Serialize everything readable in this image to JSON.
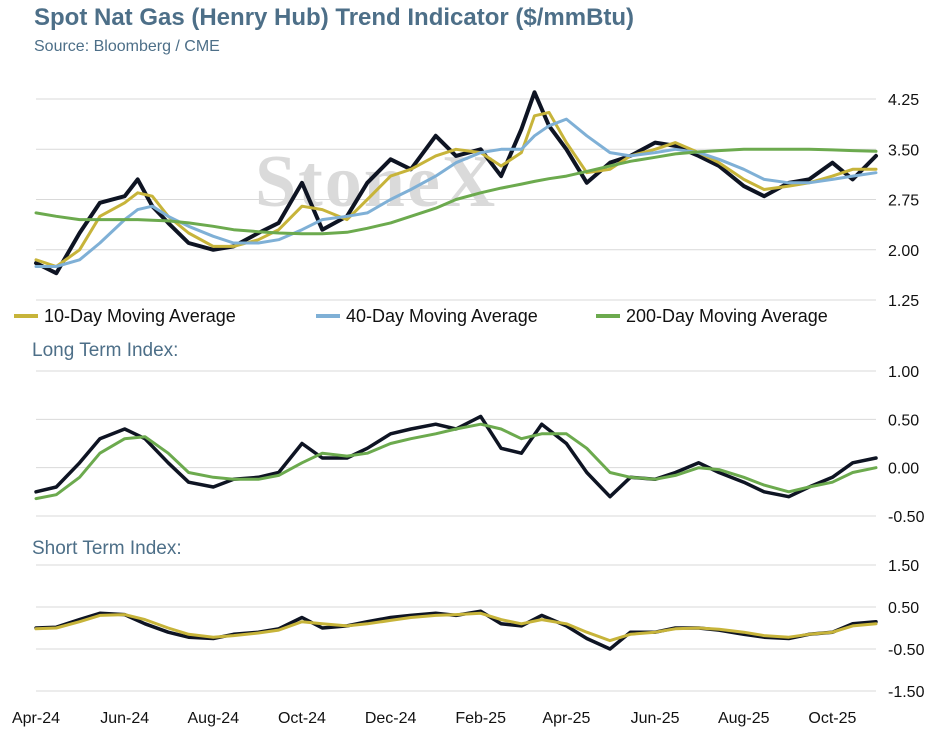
{
  "header": {
    "title": "Spot Nat Gas (Henry Hub) Trend Indicator ($/mmBtu)",
    "source": "Source: Bloomberg / CME"
  },
  "watermark": "StoneX",
  "colors": {
    "spot": "#0e1423",
    "ma10": "#c7b43a",
    "ma40": "#7fb0d6",
    "ma200": "#6caa4e",
    "long_index": "#0e1423",
    "long_signal": "#6caa4e",
    "short_index": "#0e1423",
    "short_signal": "#c7b43a",
    "grid": "#d9d9d9"
  },
  "x_axis": {
    "tick_labels": [
      "Apr-24",
      "Jun-24",
      "Aug-24",
      "Oct-24",
      "Dec-24",
      "Feb-25",
      "Apr-25",
      "Jun-25",
      "Aug-25",
      "Oct-25"
    ],
    "tick_dates": [
      "2024-04-01",
      "2024-06-01",
      "2024-08-01",
      "2024-10-01",
      "2024-12-01",
      "2025-02-01",
      "2025-04-01",
      "2025-06-01",
      "2025-08-01",
      "2025-10-01"
    ],
    "range": [
      "2024-04-01",
      "2025-10-31"
    ]
  },
  "chart_data": [
    {
      "type": "line",
      "name": "price-panel",
      "title": "",
      "ylim": [
        1.25,
        4.25
      ],
      "y_ticks": [
        1.25,
        2.0,
        2.75,
        3.5,
        4.25
      ],
      "y_tick_labels": [
        "1.25",
        "2.00",
        "2.75",
        "3.50",
        "4.25"
      ],
      "grid": true,
      "legend": "bottom",
      "legend_entries": [
        "10-Day Moving Average",
        "40-Day Moving Average",
        "200-Day Moving Average"
      ],
      "x": [
        "2024-04-01",
        "2024-04-15",
        "2024-05-01",
        "2024-05-15",
        "2024-06-01",
        "2024-06-10",
        "2024-06-20",
        "2024-07-01",
        "2024-07-15",
        "2024-08-01",
        "2024-08-15",
        "2024-09-01",
        "2024-09-15",
        "2024-10-01",
        "2024-10-15",
        "2024-11-01",
        "2024-11-15",
        "2024-12-01",
        "2024-12-15",
        "2025-01-01",
        "2025-01-15",
        "2025-02-01",
        "2025-02-15",
        "2025-03-01",
        "2025-03-10",
        "2025-03-20",
        "2025-04-01",
        "2025-04-15",
        "2025-05-01",
        "2025-05-15",
        "2025-06-01",
        "2025-06-15",
        "2025-07-01",
        "2025-07-15",
        "2025-08-01",
        "2025-08-15",
        "2025-09-01",
        "2025-09-15",
        "2025-10-01",
        "2025-10-15",
        "2025-10-31"
      ],
      "series": [
        {
          "key": "spot",
          "values": [
            1.8,
            1.65,
            2.25,
            2.7,
            2.8,
            3.05,
            2.65,
            2.4,
            2.1,
            2.0,
            2.05,
            2.25,
            2.4,
            3.0,
            2.3,
            2.5,
            3.0,
            3.35,
            3.2,
            3.7,
            3.4,
            3.5,
            3.1,
            3.8,
            4.35,
            3.85,
            3.5,
            3.0,
            3.3,
            3.4,
            3.6,
            3.55,
            3.4,
            3.25,
            2.95,
            2.8,
            3.0,
            3.05,
            3.3,
            3.05,
            3.4
          ]
        },
        {
          "key": "ma10",
          "name": "10-Day Moving Average",
          "values": [
            1.85,
            1.75,
            2.0,
            2.5,
            2.7,
            2.85,
            2.8,
            2.5,
            2.25,
            2.05,
            2.05,
            2.15,
            2.3,
            2.65,
            2.6,
            2.45,
            2.75,
            3.1,
            3.2,
            3.4,
            3.5,
            3.45,
            3.25,
            3.45,
            4.0,
            4.05,
            3.6,
            3.15,
            3.2,
            3.4,
            3.5,
            3.6,
            3.45,
            3.3,
            3.05,
            2.9,
            2.95,
            3.0,
            3.1,
            3.2,
            3.2
          ]
        },
        {
          "key": "ma40",
          "name": "40-Day Moving Average",
          "values": [
            1.75,
            1.75,
            1.85,
            2.1,
            2.45,
            2.6,
            2.65,
            2.5,
            2.35,
            2.2,
            2.1,
            2.1,
            2.15,
            2.3,
            2.45,
            2.5,
            2.55,
            2.75,
            2.9,
            3.1,
            3.3,
            3.45,
            3.5,
            3.5,
            3.7,
            3.85,
            3.95,
            3.7,
            3.45,
            3.4,
            3.45,
            3.5,
            3.45,
            3.35,
            3.2,
            3.05,
            3.0,
            3.0,
            3.05,
            3.1,
            3.15
          ]
        },
        {
          "key": "ma200",
          "name": "200-Day Moving Average",
          "values": [
            2.55,
            2.5,
            2.45,
            2.45,
            2.45,
            2.45,
            2.44,
            2.43,
            2.4,
            2.35,
            2.3,
            2.27,
            2.25,
            2.24,
            2.24,
            2.26,
            2.32,
            2.4,
            2.5,
            2.62,
            2.75,
            2.85,
            2.92,
            2.98,
            3.02,
            3.06,
            3.1,
            3.17,
            3.25,
            3.32,
            3.38,
            3.43,
            3.46,
            3.48,
            3.5,
            3.5,
            3.5,
            3.5,
            3.49,
            3.48,
            3.47
          ]
        }
      ]
    },
    {
      "type": "line",
      "name": "long-term-index",
      "title": "Long Term Index:",
      "ylim": [
        -0.5,
        1.0
      ],
      "y_ticks": [
        1.0,
        0.5,
        0.0,
        -0.5
      ],
      "y_tick_labels": [
        "1.00",
        "0.50",
        "0.00",
        "-0.50"
      ],
      "grid": true,
      "x": [
        "2024-04-01",
        "2024-04-15",
        "2024-05-01",
        "2024-05-15",
        "2024-06-01",
        "2024-06-15",
        "2024-07-01",
        "2024-07-15",
        "2024-08-01",
        "2024-08-15",
        "2024-09-01",
        "2024-09-15",
        "2024-10-01",
        "2024-10-15",
        "2024-11-01",
        "2024-11-15",
        "2024-12-01",
        "2024-12-15",
        "2025-01-01",
        "2025-01-15",
        "2025-02-01",
        "2025-02-15",
        "2025-03-01",
        "2025-03-15",
        "2025-04-01",
        "2025-04-15",
        "2025-05-01",
        "2025-05-15",
        "2025-06-01",
        "2025-06-15",
        "2025-07-01",
        "2025-07-15",
        "2025-08-01",
        "2025-08-15",
        "2025-09-01",
        "2025-09-15",
        "2025-10-01",
        "2025-10-15",
        "2025-10-31"
      ],
      "series": [
        {
          "key": "long_index",
          "values": [
            -0.25,
            -0.2,
            0.05,
            0.3,
            0.4,
            0.3,
            0.05,
            -0.15,
            -0.2,
            -0.12,
            -0.1,
            -0.05,
            0.25,
            0.1,
            0.1,
            0.2,
            0.35,
            0.4,
            0.45,
            0.4,
            0.53,
            0.2,
            0.15,
            0.45,
            0.25,
            -0.05,
            -0.3,
            -0.1,
            -0.12,
            -0.05,
            0.05,
            -0.05,
            -0.15,
            -0.25,
            -0.3,
            -0.2,
            -0.1,
            0.05,
            0.1
          ]
        },
        {
          "key": "long_signal",
          "values": [
            -0.32,
            -0.28,
            -0.1,
            0.15,
            0.3,
            0.32,
            0.15,
            -0.05,
            -0.1,
            -0.12,
            -0.12,
            -0.08,
            0.05,
            0.15,
            0.12,
            0.15,
            0.25,
            0.3,
            0.35,
            0.4,
            0.45,
            0.4,
            0.3,
            0.35,
            0.35,
            0.2,
            -0.05,
            -0.1,
            -0.12,
            -0.08,
            0.0,
            -0.02,
            -0.1,
            -0.18,
            -0.25,
            -0.2,
            -0.15,
            -0.05,
            0.0
          ]
        }
      ]
    },
    {
      "type": "line",
      "name": "short-term-index",
      "title": "Short Term Index:",
      "ylim": [
        -1.5,
        1.5
      ],
      "y_ticks": [
        1.5,
        0.5,
        -0.5,
        -1.5
      ],
      "y_tick_labels": [
        "1.50",
        "0.50",
        "-0.50",
        "-1.50"
      ],
      "grid": true,
      "x": [
        "2024-04-01",
        "2024-04-15",
        "2024-05-01",
        "2024-05-15",
        "2024-06-01",
        "2024-06-15",
        "2024-07-01",
        "2024-07-15",
        "2024-08-01",
        "2024-08-15",
        "2024-09-01",
        "2024-09-15",
        "2024-10-01",
        "2024-10-15",
        "2024-11-01",
        "2024-11-15",
        "2024-12-01",
        "2024-12-15",
        "2025-01-01",
        "2025-01-15",
        "2025-02-01",
        "2025-02-15",
        "2025-03-01",
        "2025-03-15",
        "2025-04-01",
        "2025-04-15",
        "2025-05-01",
        "2025-05-15",
        "2025-06-01",
        "2025-06-15",
        "2025-07-01",
        "2025-07-15",
        "2025-08-01",
        "2025-08-15",
        "2025-09-01",
        "2025-09-15",
        "2025-10-01",
        "2025-10-15",
        "2025-10-31"
      ],
      "series": [
        {
          "key": "short_index",
          "values": [
            0.0,
            0.02,
            0.2,
            0.35,
            0.32,
            0.1,
            -0.1,
            -0.22,
            -0.25,
            -0.15,
            -0.1,
            -0.02,
            0.25,
            0.0,
            0.05,
            0.15,
            0.25,
            0.3,
            0.35,
            0.3,
            0.4,
            0.1,
            0.05,
            0.3,
            0.05,
            -0.25,
            -0.5,
            -0.1,
            -0.1,
            0.0,
            0.0,
            -0.05,
            -0.15,
            -0.22,
            -0.25,
            -0.15,
            -0.1,
            0.1,
            0.15
          ]
        },
        {
          "key": "short_signal",
          "values": [
            -0.02,
            0.0,
            0.15,
            0.3,
            0.32,
            0.2,
            0.0,
            -0.15,
            -0.22,
            -0.18,
            -0.12,
            -0.05,
            0.15,
            0.1,
            0.05,
            0.1,
            0.18,
            0.25,
            0.3,
            0.32,
            0.35,
            0.2,
            0.1,
            0.2,
            0.1,
            -0.1,
            -0.3,
            -0.15,
            -0.1,
            -0.02,
            0.0,
            -0.03,
            -0.1,
            -0.18,
            -0.22,
            -0.15,
            -0.1,
            0.05,
            0.1
          ]
        }
      ]
    }
  ]
}
